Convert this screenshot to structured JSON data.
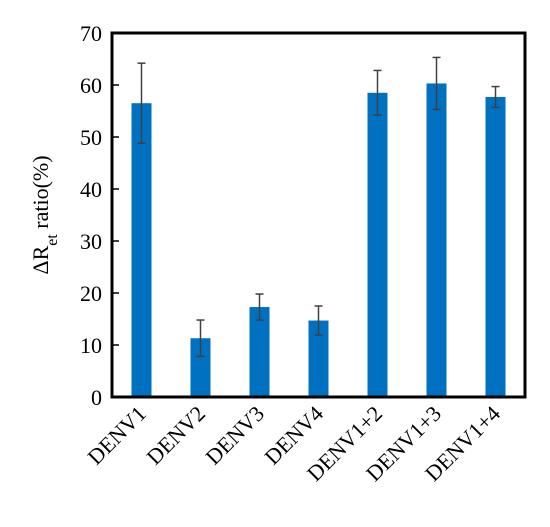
{
  "chart_data": {
    "type": "bar",
    "y_label": [
      "ΔR",
      "et",
      " ratio(%)"
    ],
    "categories": [
      "DENV1",
      "DENV2",
      "DENV3",
      "DENV4",
      "DENV1+2",
      "DENV1+3",
      "DENV1+4"
    ],
    "values": [
      56.5,
      11.3,
      17.3,
      14.7,
      58.5,
      60.3,
      57.7
    ],
    "errors": [
      7.7,
      3.5,
      2.5,
      2.8,
      4.3,
      5.0,
      2.0
    ],
    "color": "#0070c0",
    "error_color": "#404040",
    "ylim": [
      0,
      70
    ],
    "yticks": [
      0,
      10,
      20,
      30,
      40,
      50,
      60,
      70
    ],
    "grid": false
  }
}
